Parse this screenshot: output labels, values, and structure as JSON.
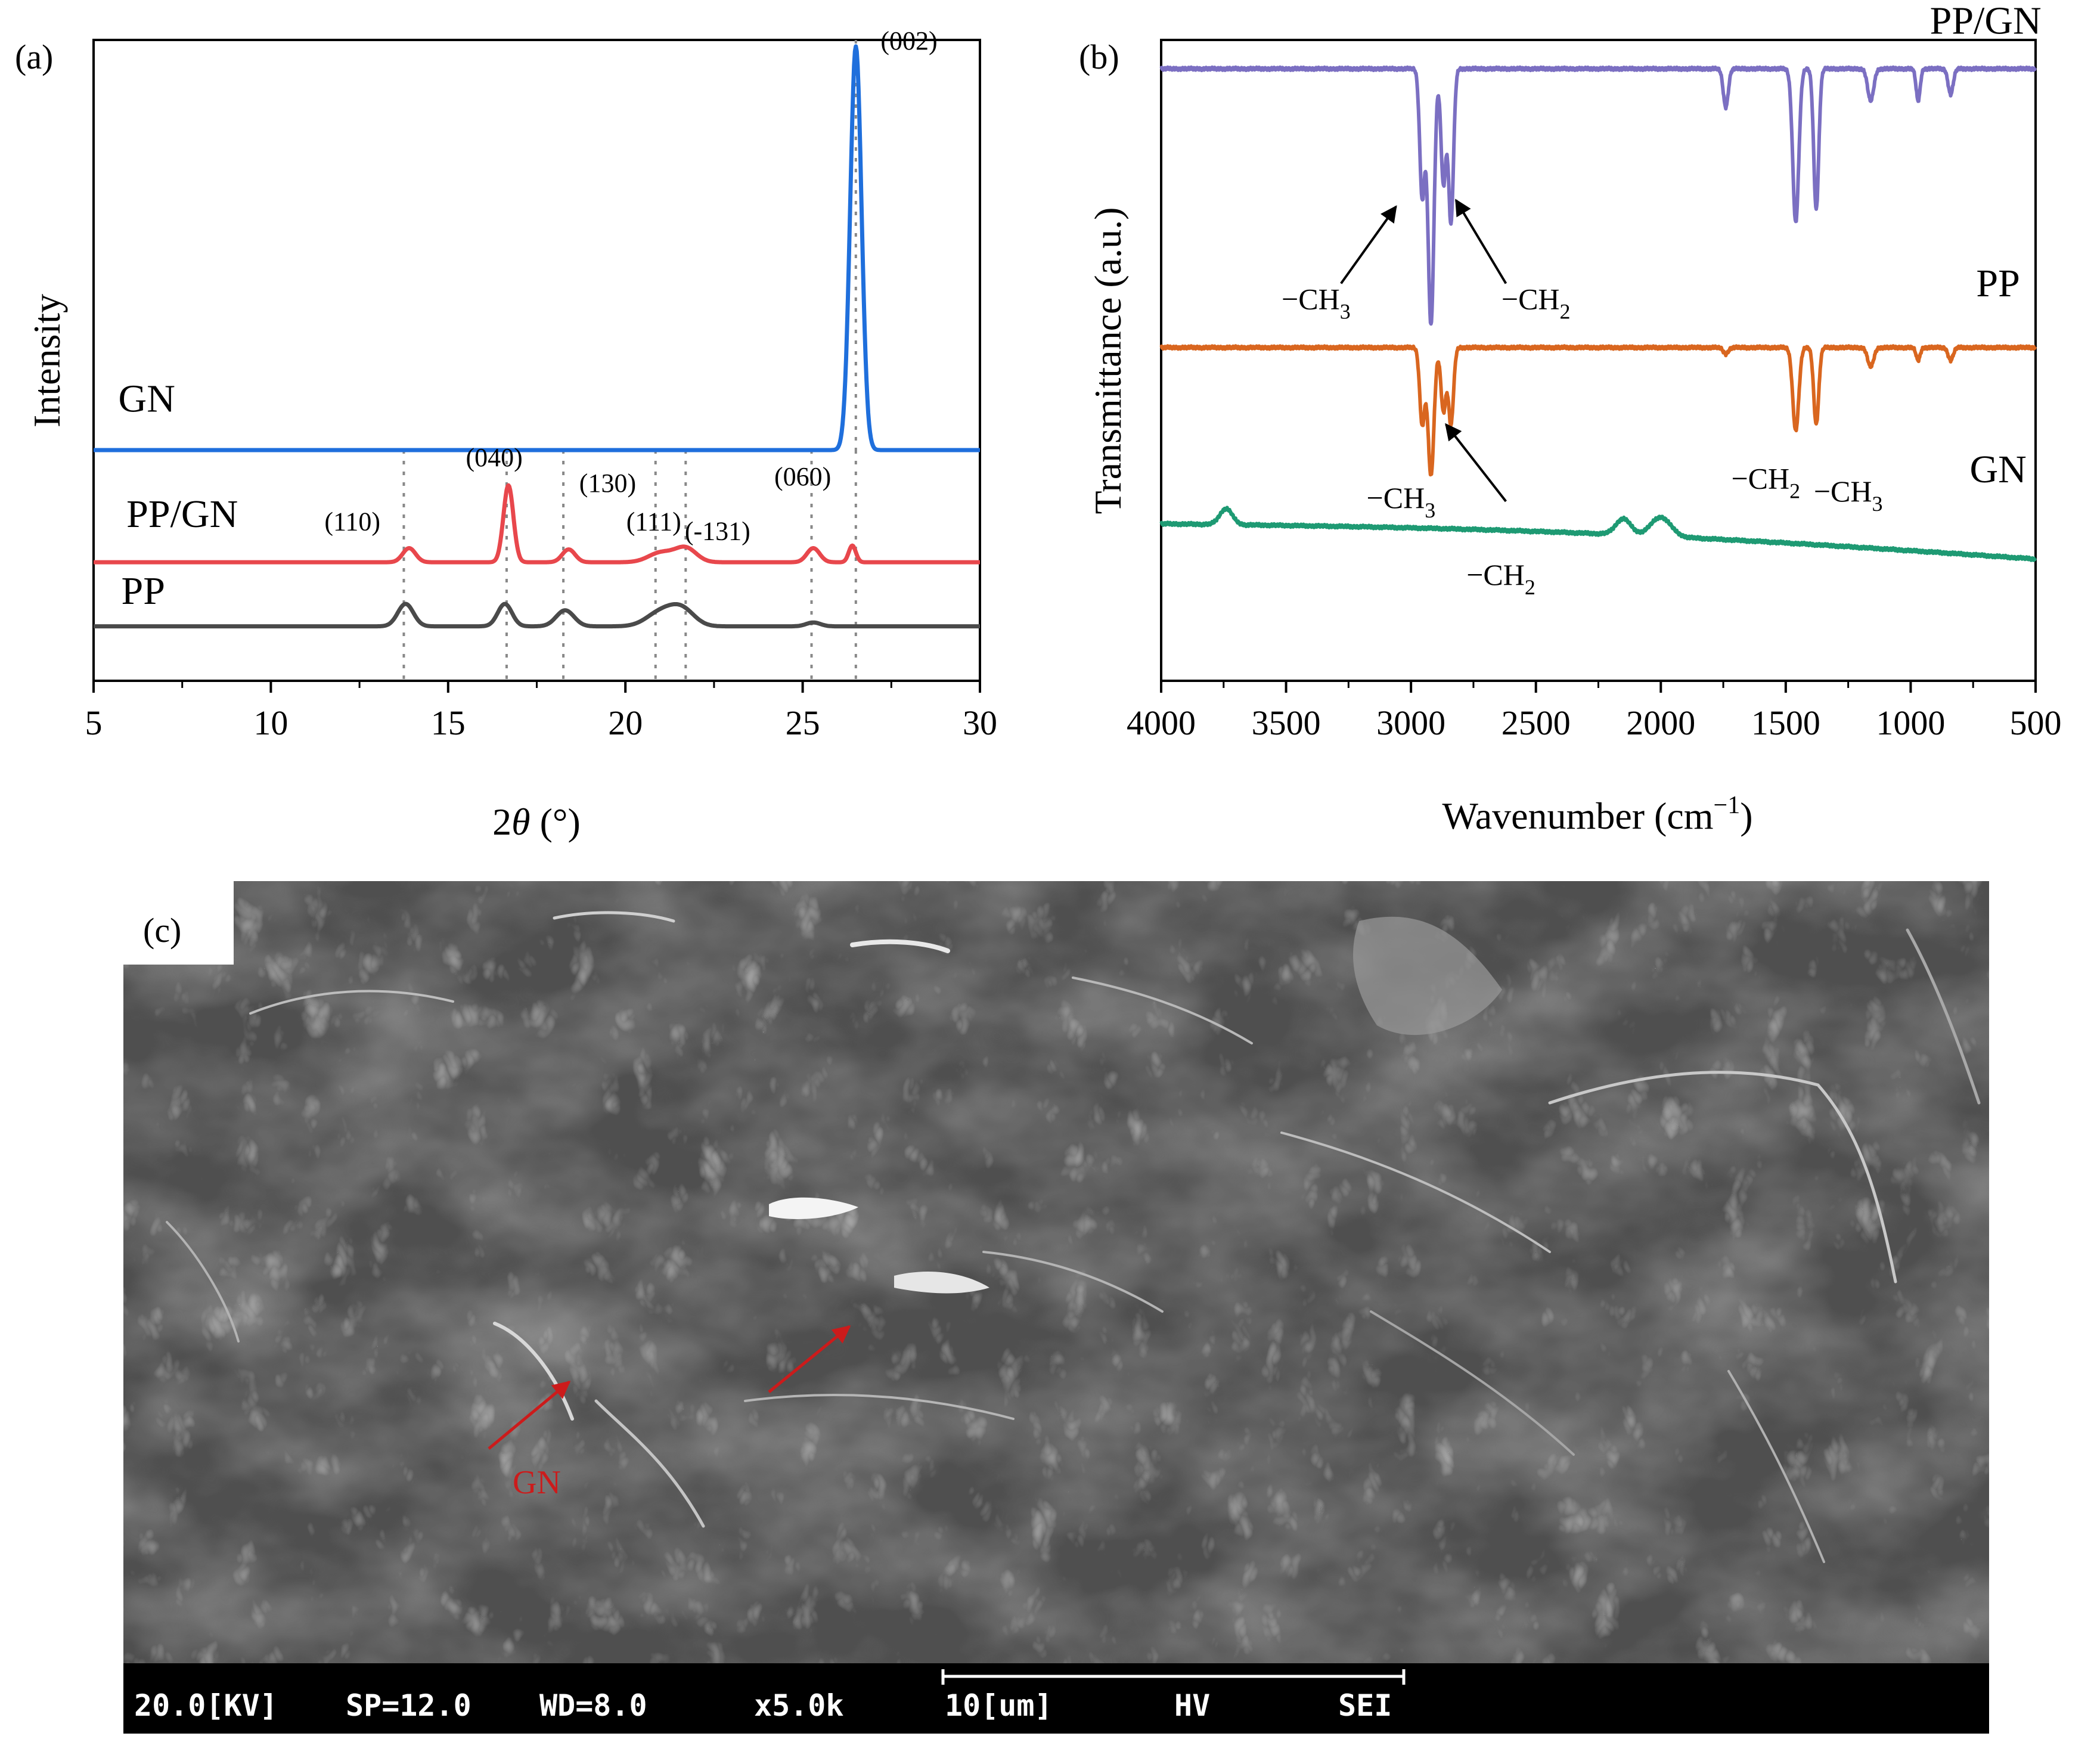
{
  "chart_data": [
    {
      "type": "line",
      "panel_label": "(a)",
      "xlabel_prefix": "2",
      "xlabel_symbol": "θ",
      "xlabel_unit": " (°)",
      "ylabel": "Intensity",
      "xlim": [
        5,
        30
      ],
      "ylim": [
        0,
        100
      ],
      "x_ticks": [
        5,
        10,
        15,
        20,
        25,
        30
      ],
      "x_tick_labels": [
        "5",
        "10",
        "15",
        "20",
        "25",
        "30"
      ],
      "series": [
        {
          "name": "GN",
          "color": "#1f6fdc",
          "baseline": 36,
          "peaks": [
            [
              26.5,
              63,
              0.16
            ]
          ]
        },
        {
          "name": "PP/GN",
          "color": "#e8474c",
          "baseline": 18.5,
          "peaks": [
            [
              13.9,
              2.2,
              0.18
            ],
            [
              16.7,
              12,
              0.14
            ],
            [
              18.4,
              2,
              0.18
            ],
            [
              21.0,
              1.5,
              0.35
            ],
            [
              21.7,
              2.2,
              0.3
            ],
            [
              25.3,
              2.2,
              0.18
            ],
            [
              26.4,
              2.6,
              0.1
            ]
          ]
        },
        {
          "name": "PP",
          "color": "#4a4a4a",
          "baseline": 8.5,
          "peaks": [
            [
              13.8,
              3.5,
              0.22
            ],
            [
              16.6,
              3.5,
              0.2
            ],
            [
              18.3,
              2.5,
              0.25
            ],
            [
              21.0,
              2.2,
              0.4
            ],
            [
              21.6,
              2.5,
              0.35
            ],
            [
              25.3,
              0.6,
              0.2
            ]
          ]
        }
      ],
      "reference_lines": [
        13.75,
        16.65,
        18.25,
        20.85,
        21.7,
        25.25,
        26.5
      ],
      "peak_labels": [
        {
          "text": "(110)",
          "x": 12.3,
          "y": 23.5
        },
        {
          "text": "(040)",
          "x": 16.3,
          "y": 33.5
        },
        {
          "text": "(130)",
          "x": 19.5,
          "y": 29.5
        },
        {
          "text": "(111)",
          "x": 20.8,
          "y": 23.5
        },
        {
          "text": "(-131)",
          "x": 22.6,
          "y": 22.0
        },
        {
          "text": "(060)",
          "x": 25.0,
          "y": 30.5
        },
        {
          "text": "(002)",
          "x": 28.0,
          "y": 98.5
        }
      ],
      "series_labels": [
        {
          "text": "GN",
          "x": 6.5,
          "y": 42
        },
        {
          "text": "PP/GN",
          "x": 7.5,
          "y": 24
        },
        {
          "text": "PP",
          "x": 6.4,
          "y": 12
        }
      ]
    },
    {
      "type": "line",
      "panel_label": "(b)",
      "xlabel_main": "Wavenumber (cm",
      "xlabel_sup": "−1",
      "xlabel_end": ")",
      "ylabel": "Transmittance (a.u.)",
      "xlim": [
        4000,
        500
      ],
      "ylim": [
        0,
        100
      ],
      "x_ticks": [
        4000,
        3500,
        3000,
        2500,
        2000,
        1500,
        1000,
        500
      ],
      "x_tick_labels": [
        "4000",
        "3500",
        "3000",
        "2500",
        "2000",
        "1500",
        "1000",
        "500"
      ],
      "series": [
        {
          "name": "PP/GN",
          "color": "#7b6fc2",
          "baseline": 95.5,
          "dips": [
            [
              2955,
              20,
              10
            ],
            [
              2920,
              40,
              12
            ],
            [
              2870,
              18,
              10
            ],
            [
              2840,
              24,
              10
            ],
            [
              1740,
              6,
              10
            ],
            [
              1460,
              24,
              12
            ],
            [
              1378,
              22,
              10
            ],
            [
              1160,
              5,
              12
            ],
            [
              970,
              5,
              8
            ],
            [
              840,
              4,
              10
            ]
          ]
        },
        {
          "name": "PP",
          "color": "#d9661f",
          "baseline": 52,
          "dips": [
            [
              2955,
              12,
              10
            ],
            [
              2920,
              20,
              12
            ],
            [
              2870,
              10,
              10
            ],
            [
              2840,
              12,
              10
            ],
            [
              1740,
              1,
              10
            ],
            [
              1460,
              13,
              12
            ],
            [
              1378,
              12,
              10
            ],
            [
              1160,
              3,
              12
            ],
            [
              970,
              2,
              8
            ],
            [
              840,
              2,
              10
            ]
          ]
        },
        {
          "name": "GN",
          "color": "#1e9a73",
          "baseline_start": 24.5,
          "baseline_end": 19,
          "bumps": [
            [
              3740,
              2.5,
              25
            ],
            [
              2150,
              2.5,
              30
            ],
            [
              2000,
              3,
              40
            ]
          ]
        }
      ],
      "series_labels": [
        {
          "text": "PP/GN",
          "x": 700,
          "y": 101
        },
        {
          "text": "PP",
          "x": 650,
          "y": 60
        },
        {
          "text": "GN",
          "x": 650,
          "y": 31
        }
      ],
      "annotations": [
        {
          "main": "−CH",
          "sub": "3",
          "x": 3380,
          "y": 58
        },
        {
          "main": "−CH",
          "sub": "2",
          "x": 2500,
          "y": 58
        },
        {
          "main": "−CH",
          "sub": "3",
          "x": 3040,
          "y": 27
        },
        {
          "main": "−CH",
          "sub": "2",
          "x": 2640,
          "y": 15
        },
        {
          "main": "−CH",
          "sub": "2",
          "x": 1580,
          "y": 30
        },
        {
          "main": "−CH",
          "sub": "3",
          "x": 1250,
          "y": 28
        }
      ],
      "arrows": [
        {
          "from": [
            3280,
            62
          ],
          "to": [
            3060,
            74
          ]
        },
        {
          "from": [
            2620,
            62
          ],
          "to": [
            2820,
            75
          ]
        },
        {
          "from": [
            2620,
            28
          ],
          "to": [
            2860,
            40
          ]
        }
      ]
    }
  ],
  "sem_panel": {
    "label": "(c)",
    "annotation": "GN",
    "info_bar": [
      "20.0[KV]",
      "SP=12.0",
      "WD=8.0",
      "x5.0k",
      "10[um]",
      "HV",
      "SEI"
    ]
  },
  "colors": {
    "axis": "#000000",
    "ref_line": "#888888",
    "sem_annotation": "#cc1b1b"
  }
}
